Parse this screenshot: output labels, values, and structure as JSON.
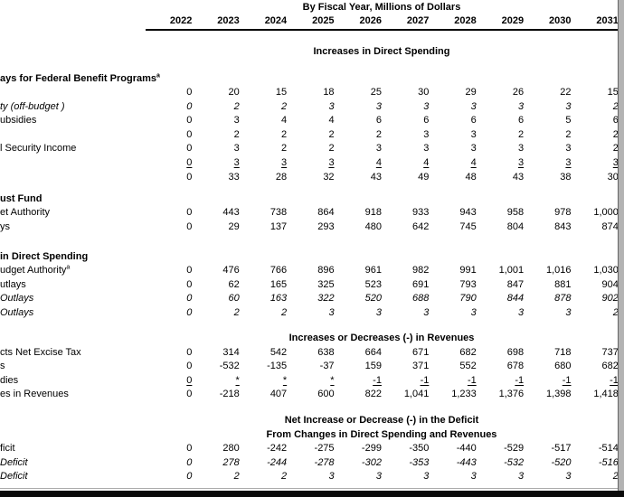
{
  "colors": {
    "text": "#000000",
    "rule": "#000000",
    "edge_bar": "#0a0a0a",
    "scroll_strip": "#b3b3b3"
  },
  "table": {
    "unit_header": "By Fiscal Year, Millions of Dollars",
    "years": [
      "2022",
      "2023",
      "2024",
      "2025",
      "2026",
      "2027",
      "2028",
      "2029",
      "2030",
      "2031"
    ],
    "blocks": [
      {
        "band": [
          "Increases in Direct Spending"
        ]
      },
      {
        "heading": [
          {
            "t": "ays for Federal Benefit Programs"
          },
          {
            "t": "a",
            "sup": true
          }
        ],
        "rows": [
          {
            "label": [],
            "values": [
              "0",
              "20",
              "15",
              "18",
              "25",
              "30",
              "29",
              "26",
              "22",
              "15"
            ]
          },
          {
            "label": [
              {
                "t": "ty ("
              },
              {
                "t": "off-budget",
                "i": true
              },
              {
                "t": " )"
              }
            ],
            "italic": true,
            "values": [
              "0",
              "2",
              "2",
              "3",
              "3",
              "3",
              "3",
              "3",
              "3",
              "2"
            ]
          },
          {
            "label": [
              {
                "t": "ubsidies"
              }
            ],
            "values": [
              "0",
              "3",
              "4",
              "4",
              "6",
              "6",
              "6",
              "6",
              "5",
              "6"
            ]
          },
          {
            "label": [],
            "values": [
              "0",
              "2",
              "2",
              "2",
              "2",
              "3",
              "3",
              "2",
              "2",
              "2"
            ]
          },
          {
            "label": [
              {
                "t": "l Security Income"
              }
            ],
            "values": [
              "0",
              "3",
              "2",
              "2",
              "3",
              "3",
              "3",
              "3",
              "3",
              "2"
            ]
          },
          {
            "label": [],
            "underline": true,
            "values": [
              "0",
              "3",
              "3",
              "3",
              "4",
              "4",
              "4",
              "3",
              "3",
              "3"
            ]
          },
          {
            "label": [],
            "values": [
              "0",
              "33",
              "28",
              "32",
              "43",
              "49",
              "48",
              "43",
              "38",
              "30"
            ]
          }
        ]
      },
      {
        "heading": [
          {
            "t": "ust Fund"
          }
        ],
        "rows": [
          {
            "label": [
              {
                "t": "et Authority"
              }
            ],
            "values": [
              "0",
              "443",
              "738",
              "864",
              "918",
              "933",
              "943",
              "958",
              "978",
              "1,000"
            ]
          },
          {
            "label": [
              {
                "t": "ys"
              }
            ],
            "values": [
              "0",
              "29",
              "137",
              "293",
              "480",
              "642",
              "745",
              "804",
              "843",
              "874"
            ]
          }
        ]
      },
      {
        "heading": [
          {
            "t": "in Direct Spending"
          }
        ],
        "rows": [
          {
            "label": [
              {
                "t": "udget Authority"
              },
              {
                "t": "a",
                "sup": true
              }
            ],
            "values": [
              "0",
              "476",
              "766",
              "896",
              "961",
              "982",
              "991",
              "1,001",
              "1,016",
              "1,030"
            ]
          },
          {
            "label": [
              {
                "t": "utlays"
              }
            ],
            "values": [
              "0",
              "62",
              "165",
              "325",
              "523",
              "691",
              "793",
              "847",
              "881",
              "904"
            ]
          },
          {
            "label": [
              {
                "t": "Outlays",
                "i": true
              }
            ],
            "italic": true,
            "values": [
              "0",
              "60",
              "163",
              "322",
              "520",
              "688",
              "790",
              "844",
              "878",
              "902"
            ]
          },
          {
            "label": [
              {
                "t": "Outlays",
                "i": true
              }
            ],
            "italic": true,
            "values": [
              "0",
              "2",
              "2",
              "3",
              "3",
              "3",
              "3",
              "3",
              "3",
              "2"
            ]
          }
        ]
      },
      {
        "band": [
          "Increases or Decreases (-) in Revenues"
        ],
        "rows": [
          {
            "label": [
              {
                "t": "cts Net Excise Tax"
              }
            ],
            "values": [
              "0",
              "314",
              "542",
              "638",
              "664",
              "671",
              "682",
              "698",
              "718",
              "737"
            ]
          },
          {
            "label": [
              {
                "t": "s"
              }
            ],
            "values": [
              "0",
              "-532",
              "-135",
              "-37",
              "159",
              "371",
              "552",
              "678",
              "680",
              "682"
            ]
          },
          {
            "label": [
              {
                "t": "dies"
              }
            ],
            "underline": true,
            "values": [
              "0",
              "*",
              "*",
              "*",
              "-1",
              "-1",
              "-1",
              "-1",
              "-1",
              "-1"
            ]
          },
          {
            "label": [
              {
                "t": "es in Revenues"
              }
            ],
            "values": [
              "0",
              "-218",
              "407",
              "600",
              "822",
              "1,041",
              "1,233",
              "1,376",
              "1,398",
              "1,418"
            ]
          }
        ]
      },
      {
        "band": [
          "Net Increase or Decrease (-) in the Deficit",
          "From Changes in Direct Spending and Revenues"
        ],
        "rows": [
          {
            "label": [
              {
                "t": "ficit"
              }
            ],
            "values": [
              "0",
              "280",
              "-242",
              "-275",
              "-299",
              "-350",
              "-440",
              "-529",
              "-517",
              "-514"
            ]
          },
          {
            "label": [
              {
                "t": "Deficit",
                "i": true
              }
            ],
            "italic": true,
            "values": [
              "0",
              "278",
              "-244",
              "-278",
              "-302",
              "-353",
              "-443",
              "-532",
              "-520",
              "-516"
            ]
          },
          {
            "label": [
              {
                "t": "Deficit",
                "i": true
              }
            ],
            "italic": true,
            "values": [
              "0",
              "2",
              "2",
              "3",
              "3",
              "3",
              "3",
              "3",
              "3",
              "2"
            ]
          }
        ]
      }
    ]
  }
}
